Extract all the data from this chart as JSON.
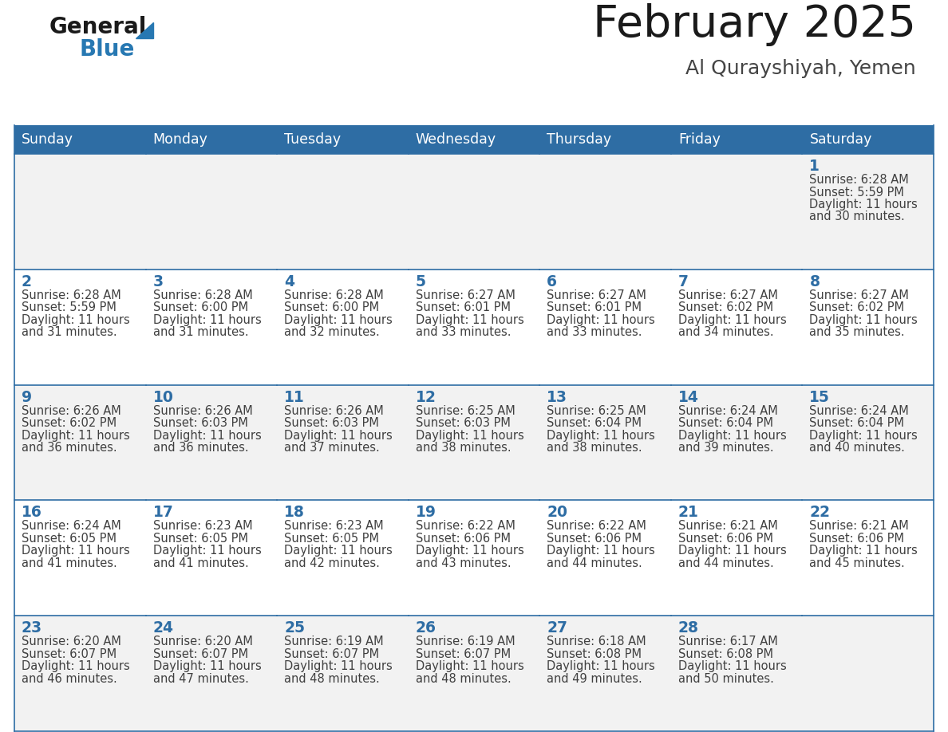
{
  "title": "February 2025",
  "subtitle": "Al Qurayshiyah, Yemen",
  "days_of_week": [
    "Sunday",
    "Monday",
    "Tuesday",
    "Wednesday",
    "Thursday",
    "Friday",
    "Saturday"
  ],
  "header_bg": "#2E6DA4",
  "header_text_color": "#FFFFFF",
  "cell_bg_odd": "#F2F2F2",
  "cell_bg_even": "#FFFFFF",
  "border_color": "#2E6DA4",
  "day_num_color": "#2E6DA4",
  "info_text_color": "#404040",
  "title_color": "#1a1a1a",
  "subtitle_color": "#444444",
  "logo_general_color": "#1a1a1a",
  "logo_blue_color": "#2778B2",
  "calendar_data": [
    [
      null,
      null,
      null,
      null,
      null,
      null,
      {
        "day": 1,
        "sunrise": "6:28 AM",
        "sunset": "5:59 PM",
        "daylight": "11 hours",
        "daylight2": "and 30 minutes."
      }
    ],
    [
      {
        "day": 2,
        "sunrise": "6:28 AM",
        "sunset": "5:59 PM",
        "daylight": "11 hours",
        "daylight2": "and 31 minutes."
      },
      {
        "day": 3,
        "sunrise": "6:28 AM",
        "sunset": "6:00 PM",
        "daylight": "11 hours",
        "daylight2": "and 31 minutes."
      },
      {
        "day": 4,
        "sunrise": "6:28 AM",
        "sunset": "6:00 PM",
        "daylight": "11 hours",
        "daylight2": "and 32 minutes."
      },
      {
        "day": 5,
        "sunrise": "6:27 AM",
        "sunset": "6:01 PM",
        "daylight": "11 hours",
        "daylight2": "and 33 minutes."
      },
      {
        "day": 6,
        "sunrise": "6:27 AM",
        "sunset": "6:01 PM",
        "daylight": "11 hours",
        "daylight2": "and 33 minutes."
      },
      {
        "day": 7,
        "sunrise": "6:27 AM",
        "sunset": "6:02 PM",
        "daylight": "11 hours",
        "daylight2": "and 34 minutes."
      },
      {
        "day": 8,
        "sunrise": "6:27 AM",
        "sunset": "6:02 PM",
        "daylight": "11 hours",
        "daylight2": "and 35 minutes."
      }
    ],
    [
      {
        "day": 9,
        "sunrise": "6:26 AM",
        "sunset": "6:02 PM",
        "daylight": "11 hours",
        "daylight2": "and 36 minutes."
      },
      {
        "day": 10,
        "sunrise": "6:26 AM",
        "sunset": "6:03 PM",
        "daylight": "11 hours",
        "daylight2": "and 36 minutes."
      },
      {
        "day": 11,
        "sunrise": "6:26 AM",
        "sunset": "6:03 PM",
        "daylight": "11 hours",
        "daylight2": "and 37 minutes."
      },
      {
        "day": 12,
        "sunrise": "6:25 AM",
        "sunset": "6:03 PM",
        "daylight": "11 hours",
        "daylight2": "and 38 minutes."
      },
      {
        "day": 13,
        "sunrise": "6:25 AM",
        "sunset": "6:04 PM",
        "daylight": "11 hours",
        "daylight2": "and 38 minutes."
      },
      {
        "day": 14,
        "sunrise": "6:24 AM",
        "sunset": "6:04 PM",
        "daylight": "11 hours",
        "daylight2": "and 39 minutes."
      },
      {
        "day": 15,
        "sunrise": "6:24 AM",
        "sunset": "6:04 PM",
        "daylight": "11 hours",
        "daylight2": "and 40 minutes."
      }
    ],
    [
      {
        "day": 16,
        "sunrise": "6:24 AM",
        "sunset": "6:05 PM",
        "daylight": "11 hours",
        "daylight2": "and 41 minutes."
      },
      {
        "day": 17,
        "sunrise": "6:23 AM",
        "sunset": "6:05 PM",
        "daylight": "11 hours",
        "daylight2": "and 41 minutes."
      },
      {
        "day": 18,
        "sunrise": "6:23 AM",
        "sunset": "6:05 PM",
        "daylight": "11 hours",
        "daylight2": "and 42 minutes."
      },
      {
        "day": 19,
        "sunrise": "6:22 AM",
        "sunset": "6:06 PM",
        "daylight": "11 hours",
        "daylight2": "and 43 minutes."
      },
      {
        "day": 20,
        "sunrise": "6:22 AM",
        "sunset": "6:06 PM",
        "daylight": "11 hours",
        "daylight2": "and 44 minutes."
      },
      {
        "day": 21,
        "sunrise": "6:21 AM",
        "sunset": "6:06 PM",
        "daylight": "11 hours",
        "daylight2": "and 44 minutes."
      },
      {
        "day": 22,
        "sunrise": "6:21 AM",
        "sunset": "6:06 PM",
        "daylight": "11 hours",
        "daylight2": "and 45 minutes."
      }
    ],
    [
      {
        "day": 23,
        "sunrise": "6:20 AM",
        "sunset": "6:07 PM",
        "daylight": "11 hours",
        "daylight2": "and 46 minutes."
      },
      {
        "day": 24,
        "sunrise": "6:20 AM",
        "sunset": "6:07 PM",
        "daylight": "11 hours",
        "daylight2": "and 47 minutes."
      },
      {
        "day": 25,
        "sunrise": "6:19 AM",
        "sunset": "6:07 PM",
        "daylight": "11 hours",
        "daylight2": "and 48 minutes."
      },
      {
        "day": 26,
        "sunrise": "6:19 AM",
        "sunset": "6:07 PM",
        "daylight": "11 hours",
        "daylight2": "and 48 minutes."
      },
      {
        "day": 27,
        "sunrise": "6:18 AM",
        "sunset": "6:08 PM",
        "daylight": "11 hours",
        "daylight2": "and 49 minutes."
      },
      {
        "day": 28,
        "sunrise": "6:17 AM",
        "sunset": "6:08 PM",
        "daylight": "11 hours",
        "daylight2": "and 50 minutes."
      },
      null
    ]
  ]
}
